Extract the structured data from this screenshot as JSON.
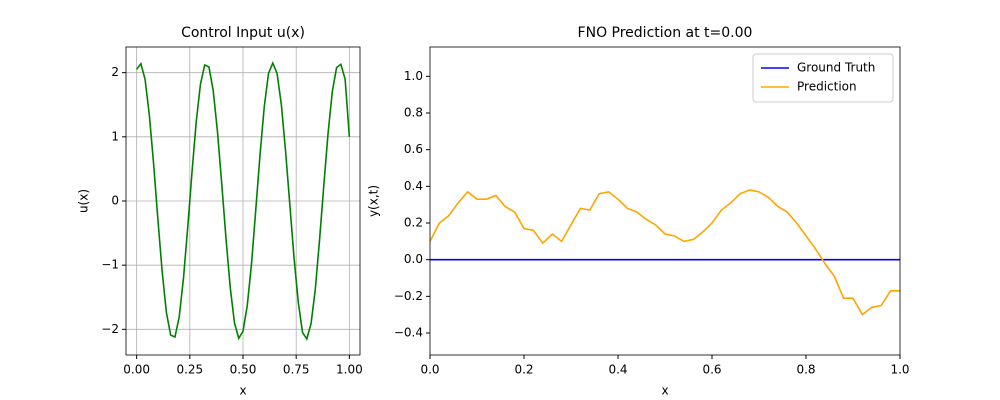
{
  "chart_data": [
    {
      "type": "line",
      "title": "Control Input u(x)",
      "xlabel": "x",
      "ylabel": "u(x)",
      "x": [
        0,
        0.02,
        0.04,
        0.06,
        0.08,
        0.1,
        0.12,
        0.14,
        0.16,
        0.18,
        0.2,
        0.22,
        0.24,
        0.26,
        0.28,
        0.3,
        0.32,
        0.34,
        0.36,
        0.38,
        0.4,
        0.42,
        0.44,
        0.46,
        0.48,
        0.5,
        0.52,
        0.54,
        0.56,
        0.58,
        0.6,
        0.62,
        0.64,
        0.66,
        0.68,
        0.7,
        0.72,
        0.74,
        0.76,
        0.78,
        0.8,
        0.82,
        0.84,
        0.86,
        0.88,
        0.9,
        0.92,
        0.94,
        0.96,
        0.98,
        1
      ],
      "series": [
        {
          "color": "#008000",
          "values": [
            2.05,
            2.14,
            1.89,
            1.33,
            0.57,
            -0.29,
            -1.1,
            -1.74,
            -2.09,
            -2.12,
            -1.81,
            -1.21,
            -0.42,
            0.44,
            1.23,
            1.82,
            2.12,
            2.09,
            1.72,
            1.08,
            0.27,
            -0.58,
            -1.35,
            -1.9,
            -2.14,
            -2.03,
            -1.63,
            -0.98,
            -0.14,
            0.72,
            1.47,
            1.99,
            2.15,
            1.99,
            1.51,
            0.78,
            -0.05,
            -0.89,
            -1.58,
            -2.05,
            -2.15,
            -1.91,
            -1.37,
            -0.6,
            0.25,
            1.06,
            1.71,
            2.08,
            2.13,
            1.9,
            1.0
          ]
        }
      ],
      "xlim": [
        -0.05,
        1.05
      ],
      "ylim": [
        -2.4,
        2.4
      ],
      "xticks": [
        {
          "value": 0,
          "label": "0.00"
        },
        {
          "value": 0.25,
          "label": "0.25"
        },
        {
          "value": 0.5,
          "label": "0.50"
        },
        {
          "value": 0.75,
          "label": "0.75"
        },
        {
          "value": 1,
          "label": "1.00"
        }
      ],
      "yticks": [
        {
          "value": -2,
          "label": "−2"
        },
        {
          "value": -1,
          "label": "−1"
        },
        0,
        1,
        2
      ],
      "grid": true
    },
    {
      "type": "line",
      "title": "FNO Prediction at t=0.00",
      "xlabel": "x",
      "ylabel": "y(x,t)",
      "x": [
        0,
        0.02,
        0.04,
        0.06,
        0.08,
        0.1,
        0.12,
        0.14,
        0.16,
        0.18,
        0.2,
        0.22,
        0.24,
        0.26,
        0.28,
        0.3,
        0.32,
        0.34,
        0.36,
        0.38,
        0.4,
        0.42,
        0.44,
        0.46,
        0.48,
        0.5,
        0.52,
        0.54,
        0.56,
        0.58,
        0.6,
        0.62,
        0.64,
        0.66,
        0.68,
        0.7,
        0.72,
        0.74,
        0.76,
        0.78,
        0.8,
        0.82,
        0.84,
        0.86,
        0.88,
        0.9,
        0.92,
        0.94,
        0.96,
        0.98,
        1
      ],
      "series": [
        {
          "name": "Ground Truth",
          "color": "#0000ff",
          "values": [
            0,
            0,
            0,
            0,
            0,
            0,
            0,
            0,
            0,
            0,
            0,
            0,
            0,
            0,
            0,
            0,
            0,
            0,
            0,
            0,
            0,
            0,
            0,
            0,
            0,
            0,
            0,
            0,
            0,
            0,
            0,
            0,
            0,
            0,
            0,
            0,
            0,
            0,
            0,
            0,
            0,
            0,
            0,
            0,
            0,
            0,
            0,
            0,
            0,
            0,
            0
          ]
        },
        {
          "name": "Prediction",
          "color": "#ffa500",
          "values": [
            0.1,
            0.2,
            0.24,
            0.31,
            0.37,
            0.33,
            0.33,
            0.35,
            0.29,
            0.26,
            0.17,
            0.16,
            0.09,
            0.14,
            0.1,
            0.19,
            0.28,
            0.27,
            0.36,
            0.37,
            0.33,
            0.28,
            0.26,
            0.22,
            0.19,
            0.14,
            0.13,
            0.1,
            0.11,
            0.15,
            0.2,
            0.27,
            0.31,
            0.36,
            0.38,
            0.37,
            0.34,
            0.29,
            0.26,
            0.2,
            0.13,
            0.06,
            -0.02,
            -0.09,
            -0.21,
            -0.21,
            -0.3,
            -0.26,
            -0.25,
            -0.17,
            -0.17
          ]
        }
      ],
      "xlim": [
        0,
        1
      ],
      "ylim": [
        -0.52,
        1.16
      ],
      "xticks": [
        {
          "value": 0,
          "label": "0.0"
        },
        {
          "value": 0.2,
          "label": "0.2"
        },
        {
          "value": 0.4,
          "label": "0.4"
        },
        {
          "value": 0.6,
          "label": "0.6"
        },
        {
          "value": 0.8,
          "label": "0.8"
        },
        {
          "value": 1,
          "label": "1.0"
        }
      ],
      "yticks": [
        {
          "value": -0.4,
          "label": "−0.4"
        },
        {
          "value": -0.2,
          "label": "−0.2"
        },
        {
          "value": 0,
          "label": "0.0"
        },
        {
          "value": 0.2,
          "label": "0.2"
        },
        {
          "value": 0.4,
          "label": "0.4"
        },
        {
          "value": 0.6,
          "label": "0.6"
        },
        {
          "value": 0.8,
          "label": "0.8"
        },
        {
          "value": 1,
          "label": "1.0"
        }
      ],
      "grid": false,
      "legend": "upper right"
    }
  ]
}
